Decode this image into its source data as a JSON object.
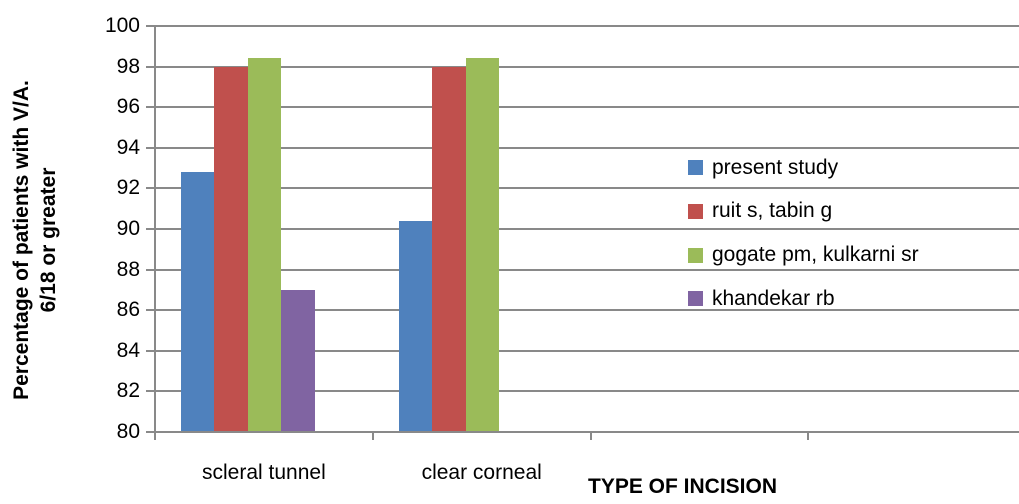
{
  "chart_data": {
    "type": "bar",
    "title": "",
    "categories": [
      "scleral tunnel",
      "clear corneal"
    ],
    "series": [
      {
        "name": "present study",
        "color": "#4f81bd",
        "values": [
          92.8,
          90.4
        ]
      },
      {
        "name": "ruit s, tabin g",
        "color": "#c0504d",
        "values": [
          98,
          98
        ]
      },
      {
        "name": "gogate pm, kulkarni sr",
        "color": "#9bbb59",
        "values": [
          98.4,
          98.4
        ]
      },
      {
        "name": "khandekar rb",
        "color": "#8064a2",
        "values": [
          87,
          null
        ]
      }
    ],
    "xlabel": "TYPE OF INCISION",
    "ylabel_lines": [
      "Percentage of patients with V/A.",
      "6/18 or greater"
    ],
    "ylim": [
      80,
      100
    ],
    "ytick_step": 2,
    "grid": "horizontal-only",
    "legend_position": "right-inside-plot",
    "gridline_color": "#898989",
    "axis_color": "#898989",
    "text_color": "#000000",
    "background_color": "#ffffff"
  }
}
